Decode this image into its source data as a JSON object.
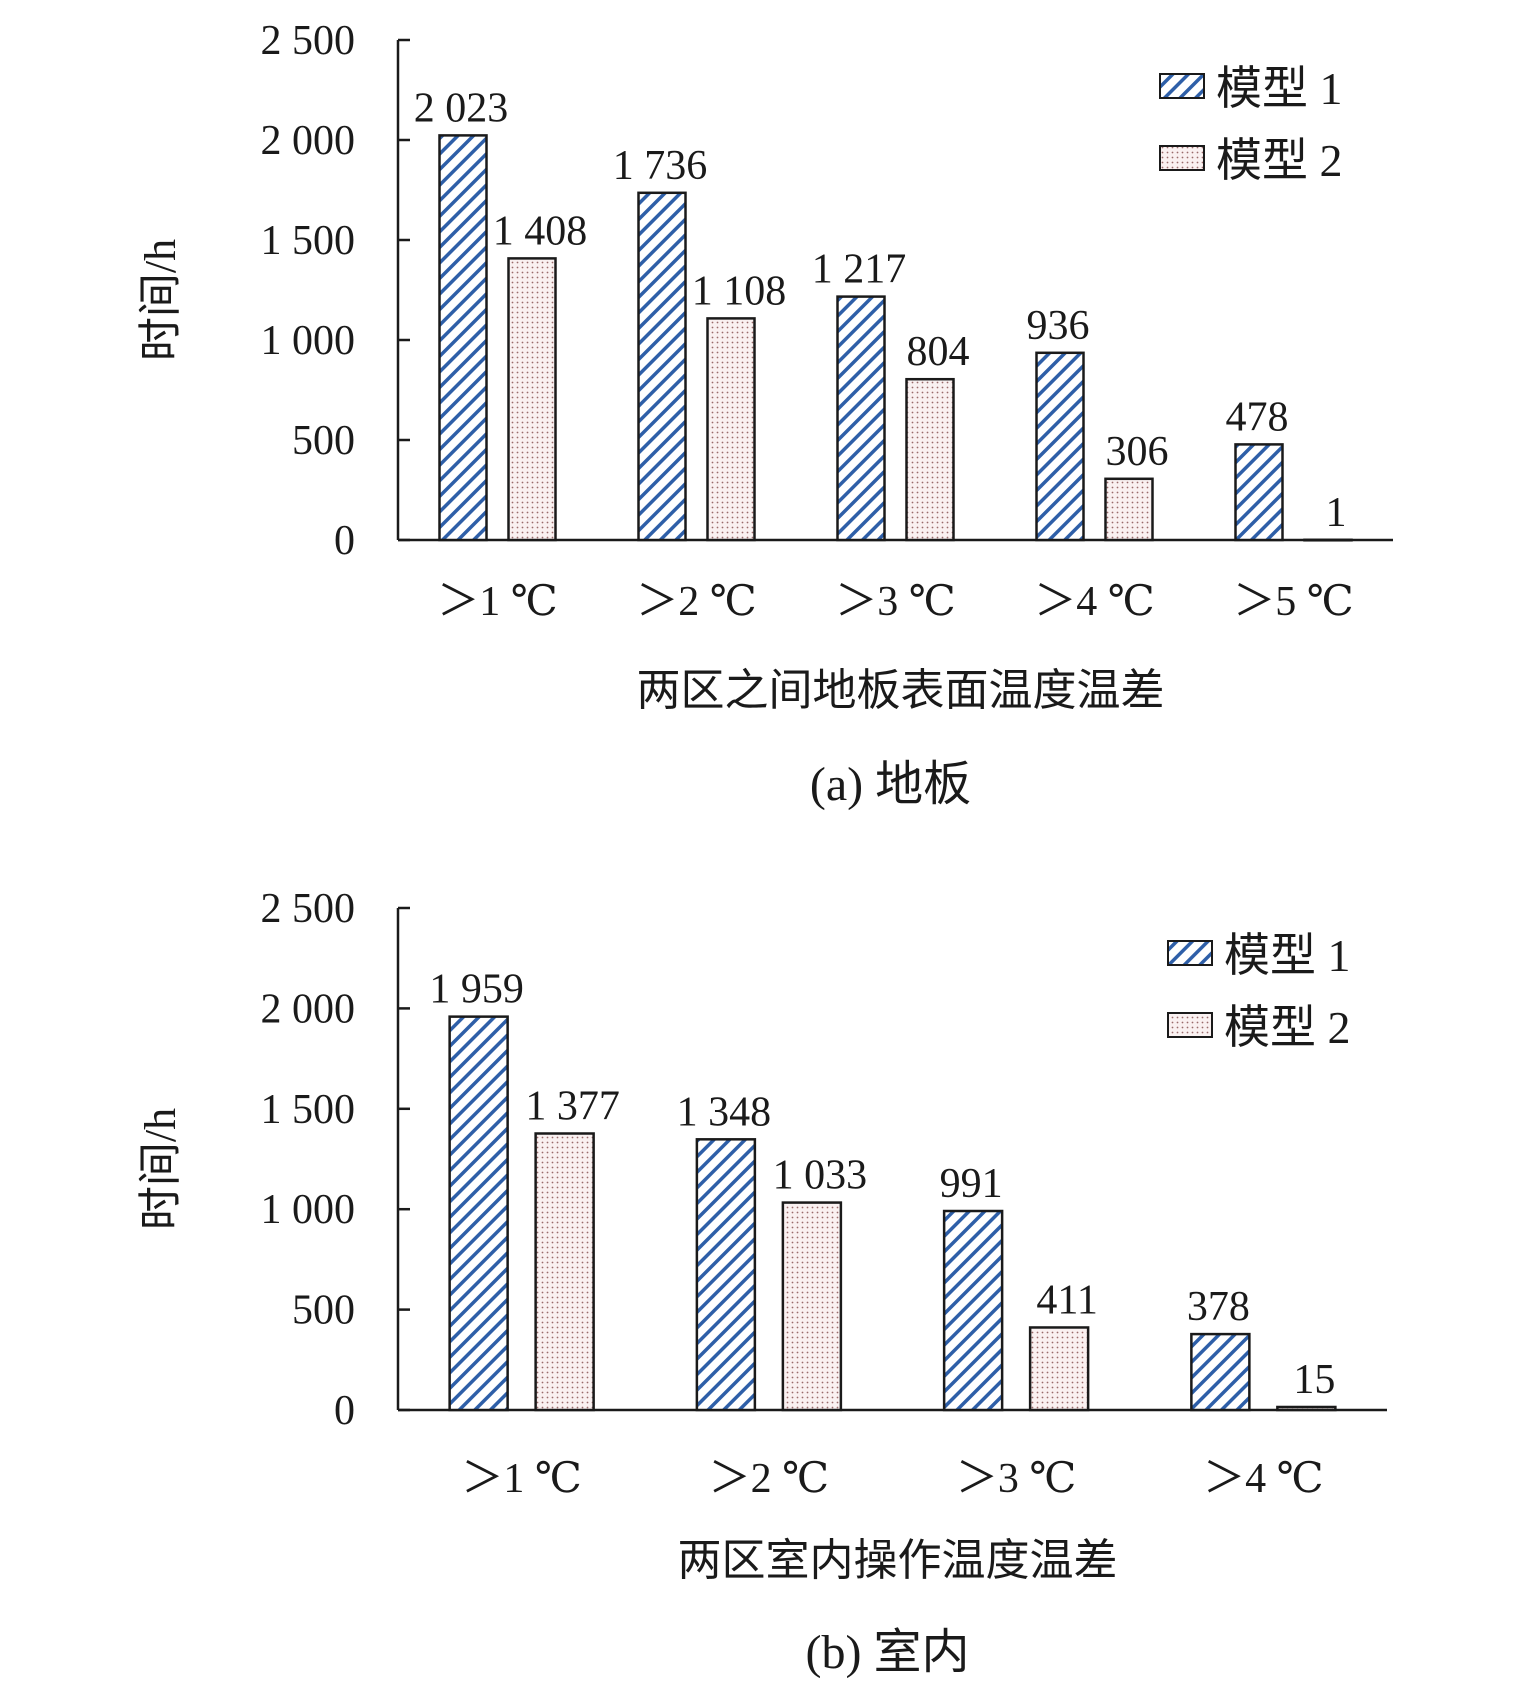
{
  "chart_data": [
    {
      "type": "bar",
      "categories": [
        "＞1 ℃",
        "＞2 ℃",
        "＞3 ℃",
        "＞4 ℃",
        "＞5 ℃"
      ],
      "series": [
        {
          "name": "模型 1",
          "values": [
            2023,
            1736,
            1217,
            936,
            478
          ],
          "labels": [
            "2 023",
            "1 736",
            "1 217",
            "936",
            "478"
          ]
        },
        {
          "name": "模型 2",
          "values": [
            1408,
            1108,
            804,
            306,
            1
          ],
          "labels": [
            "1 408",
            "1 108",
            "804",
            "306",
            "1"
          ]
        }
      ],
      "xlabel": "两区之间地板表面温度温差",
      "ylabel": "时间/h",
      "ylim": [
        0,
        2500
      ],
      "yticks": [
        0,
        500,
        1000,
        1500,
        2000,
        2500
      ],
      "ytick_labels": [
        "0",
        "500",
        "1 000",
        "1 500",
        "2 000",
        "2 500"
      ],
      "caption": "(a) 地板",
      "legend_position": "top-right",
      "grid": false
    },
    {
      "type": "bar",
      "categories": [
        "＞1 ℃",
        "＞2 ℃",
        "＞3 ℃",
        "＞4 ℃"
      ],
      "series": [
        {
          "name": "模型 1",
          "values": [
            1959,
            1348,
            991,
            378
          ],
          "labels": [
            "1 959",
            "1 348",
            "991",
            "378"
          ]
        },
        {
          "name": "模型 2",
          "values": [
            1377,
            1033,
            411,
            15
          ],
          "labels": [
            "1 377",
            "1 033",
            "411",
            "15"
          ]
        }
      ],
      "xlabel": "两区室内操作温度温差",
      "ylabel": "时间/h",
      "ylim": [
        0,
        2500
      ],
      "yticks": [
        0,
        500,
        1000,
        1500,
        2000,
        2500
      ],
      "ytick_labels": [
        "0",
        "500",
        "1 000",
        "1 500",
        "2 000",
        "2 500"
      ],
      "caption": "(b) 室内",
      "legend_position": "top-right",
      "grid": false
    }
  ],
  "colors": {
    "series1_stroke": "#2e5fa8",
    "series1_fill": "#ffffff",
    "series2_dot": "#9a6b6b",
    "series2_fill": "#faf1f1",
    "axis": "#1a1a1a"
  }
}
